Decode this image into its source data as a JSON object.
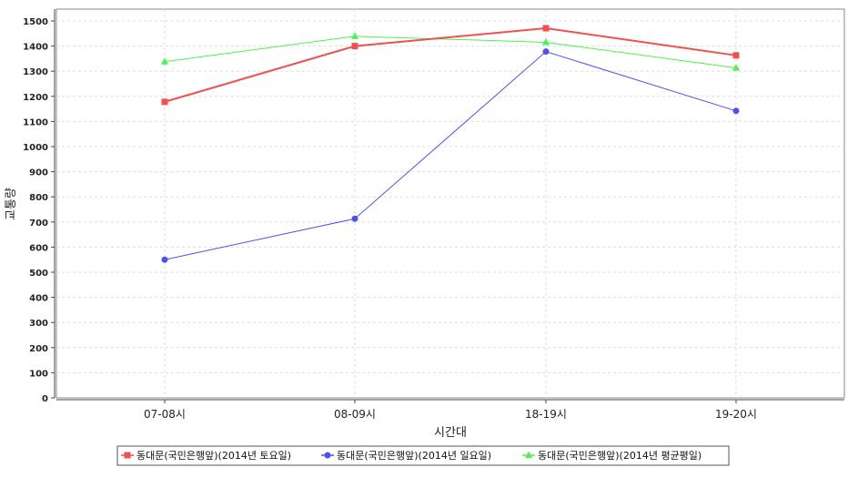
{
  "chart_data": {
    "type": "line",
    "categories": [
      "07-08시",
      "08-09시",
      "18-19시",
      "19-20시"
    ],
    "series": [
      {
        "name": "동대문(국민은행앞)(2014년 토요일)",
        "values": [
          1178,
          1400,
          1471,
          1363
        ],
        "color": "#f24f4f",
        "marker": "square"
      },
      {
        "name": "동대문(국민은행앞)(2014년 일요일)",
        "values": [
          550,
          713,
          1378,
          1142
        ],
        "color": "#4f4ff2",
        "marker": "circle"
      },
      {
        "name": "동대문(국민은행앞)(2014년 평균평일)",
        "values": [
          1338,
          1439,
          1415,
          1313
        ],
        "color": "#4ff24f",
        "marker": "triangle"
      }
    ],
    "xlabel": "시간대",
    "ylabel": "교통량",
    "ylim": [
      0,
      1500
    ],
    "yticks": [
      0,
      100,
      200,
      300,
      400,
      500,
      600,
      700,
      800,
      900,
      1000,
      1100,
      1200,
      1300,
      1400,
      1500
    ],
    "grid": true,
    "legend_position": "bottom"
  }
}
